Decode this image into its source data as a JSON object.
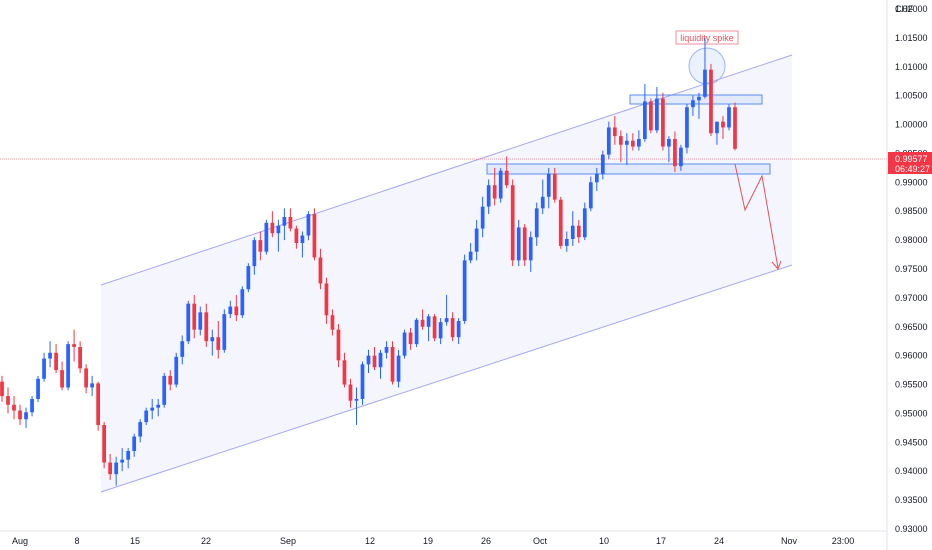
{
  "chart_data": {
    "type": "candlestick",
    "currency": "CHF",
    "ylim": [
      0.93,
      1.02
    ],
    "yticks": [
      "1.02000",
      "1.01500",
      "1.01000",
      "1.00500",
      "1.00000",
      "0.99500",
      "0.99000",
      "0.98500",
      "0.98000",
      "0.97500",
      "0.97000",
      "0.96500",
      "0.96000",
      "0.95500",
      "0.95000",
      "0.94500",
      "0.94000",
      "0.93500",
      "0.93000"
    ],
    "xticks": [
      "Aug",
      "8",
      "15",
      "22",
      "Sep",
      "12",
      "19",
      "26",
      "Oct",
      "10",
      "17",
      "24",
      "Nov",
      "23:00"
    ],
    "current_price": "0.99577",
    "countdown": "06:49:27",
    "annotation": "liquidity spike",
    "colors": {
      "up": "#2962ff",
      "down": "#f23645",
      "channel": "#7b7fe0",
      "zone": "#5b8def"
    },
    "ohlc": [
      [
        0.9555,
        0.9565,
        0.952,
        0.953
      ],
      [
        0.953,
        0.9545,
        0.95,
        0.9515
      ],
      [
        0.9515,
        0.953,
        0.949,
        0.9505
      ],
      [
        0.9505,
        0.9515,
        0.948,
        0.949
      ],
      [
        0.949,
        0.951,
        0.9475,
        0.9502
      ],
      [
        0.9502,
        0.953,
        0.9495,
        0.9525
      ],
      [
        0.9525,
        0.9565,
        0.952,
        0.956
      ],
      [
        0.956,
        0.9605,
        0.9555,
        0.9595
      ],
      [
        0.9595,
        0.9625,
        0.958,
        0.9605
      ],
      [
        0.9605,
        0.962,
        0.957,
        0.9575
      ],
      [
        0.9575,
        0.959,
        0.954,
        0.9545
      ],
      [
        0.9545,
        0.9625,
        0.954,
        0.962
      ],
      [
        0.962,
        0.9645,
        0.959,
        0.9615
      ],
      [
        0.9615,
        0.9625,
        0.957,
        0.9578
      ],
      [
        0.9578,
        0.9585,
        0.9535,
        0.9545
      ],
      [
        0.9545,
        0.9565,
        0.953,
        0.9552
      ],
      [
        0.9552,
        0.9555,
        0.947,
        0.948
      ],
      [
        0.948,
        0.9485,
        0.9405,
        0.9415
      ],
      [
        0.9415,
        0.943,
        0.9385,
        0.9395
      ],
      [
        0.9395,
        0.9425,
        0.9375,
        0.9415
      ],
      [
        0.9415,
        0.944,
        0.94,
        0.942
      ],
      [
        0.942,
        0.944,
        0.9405,
        0.9435
      ],
      [
        0.9435,
        0.9465,
        0.9425,
        0.946
      ],
      [
        0.946,
        0.949,
        0.945,
        0.9485
      ],
      [
        0.9485,
        0.951,
        0.948,
        0.9505
      ],
      [
        0.9505,
        0.9525,
        0.949,
        0.951
      ],
      [
        0.951,
        0.9525,
        0.9495,
        0.9515
      ],
      [
        0.9515,
        0.957,
        0.951,
        0.9565
      ],
      [
        0.9565,
        0.9575,
        0.954,
        0.955
      ],
      [
        0.955,
        0.9605,
        0.9545,
        0.9598
      ],
      [
        0.9598,
        0.9635,
        0.9585,
        0.9625
      ],
      [
        0.9625,
        0.9695,
        0.962,
        0.969
      ],
      [
        0.969,
        0.9705,
        0.963,
        0.9645
      ],
      [
        0.9645,
        0.9685,
        0.9635,
        0.9675
      ],
      [
        0.9675,
        0.969,
        0.9615,
        0.9625
      ],
      [
        0.9625,
        0.9645,
        0.96,
        0.9632
      ],
      [
        0.9632,
        0.966,
        0.9595,
        0.961
      ],
      [
        0.961,
        0.968,
        0.9605,
        0.9672
      ],
      [
        0.9672,
        0.9695,
        0.9665,
        0.9685
      ],
      [
        0.9685,
        0.9705,
        0.966,
        0.967
      ],
      [
        0.967,
        0.972,
        0.9665,
        0.9715
      ],
      [
        0.9715,
        0.976,
        0.971,
        0.9755
      ],
      [
        0.9755,
        0.9805,
        0.974,
        0.98
      ],
      [
        0.98,
        0.9815,
        0.9765,
        0.978
      ],
      [
        0.978,
        0.9835,
        0.9775,
        0.983
      ],
      [
        0.983,
        0.985,
        0.9805,
        0.9812
      ],
      [
        0.9812,
        0.9835,
        0.978,
        0.9825
      ],
      [
        0.9825,
        0.9855,
        0.98,
        0.984
      ],
      [
        0.984,
        0.9855,
        0.9815,
        0.982
      ],
      [
        0.982,
        0.9825,
        0.9785,
        0.9795
      ],
      [
        0.9795,
        0.9815,
        0.977,
        0.9808
      ],
      [
        0.9808,
        0.985,
        0.98,
        0.9845
      ],
      [
        0.9845,
        0.9855,
        0.9765,
        0.977
      ],
      [
        0.977,
        0.9785,
        0.9715,
        0.9725
      ],
      [
        0.9725,
        0.9735,
        0.9655,
        0.967
      ],
      [
        0.967,
        0.968,
        0.9635,
        0.9645
      ],
      [
        0.9645,
        0.9655,
        0.958,
        0.9592
      ],
      [
        0.9592,
        0.9605,
        0.9545,
        0.955
      ],
      [
        0.955,
        0.956,
        0.951,
        0.9522
      ],
      [
        0.9522,
        0.9545,
        0.948,
        0.9525
      ],
      [
        0.9525,
        0.959,
        0.9515,
        0.9585
      ],
      [
        0.9585,
        0.961,
        0.957,
        0.96
      ],
      [
        0.96,
        0.9615,
        0.9575,
        0.958
      ],
      [
        0.958,
        0.961,
        0.956,
        0.9605
      ],
      [
        0.9605,
        0.9625,
        0.9595,
        0.9615
      ],
      [
        0.9615,
        0.9625,
        0.955,
        0.9555
      ],
      [
        0.9555,
        0.961,
        0.9545,
        0.96
      ],
      [
        0.96,
        0.9645,
        0.9595,
        0.964
      ],
      [
        0.964,
        0.9648,
        0.961,
        0.962
      ],
      [
        0.962,
        0.9665,
        0.9615,
        0.9662
      ],
      [
        0.9662,
        0.968,
        0.9645,
        0.965
      ],
      [
        0.965,
        0.9672,
        0.9625,
        0.9668
      ],
      [
        0.9668,
        0.9672,
        0.9625,
        0.963
      ],
      [
        0.963,
        0.9665,
        0.962,
        0.9658
      ],
      [
        0.9658,
        0.9705,
        0.9652,
        0.9665
      ],
      [
        0.9665,
        0.9675,
        0.9625,
        0.9632
      ],
      [
        0.9632,
        0.9665,
        0.962,
        0.966
      ],
      [
        0.966,
        0.9775,
        0.9655,
        0.9765
      ],
      [
        0.9765,
        0.9795,
        0.976,
        0.978
      ],
      [
        0.978,
        0.9835,
        0.9765,
        0.982
      ],
      [
        0.982,
        0.9875,
        0.9805,
        0.9858
      ],
      [
        0.9858,
        0.9905,
        0.9845,
        0.9895
      ],
      [
        0.9895,
        0.9925,
        0.986,
        0.9872
      ],
      [
        0.9872,
        0.9925,
        0.9865,
        0.992
      ],
      [
        0.992,
        0.9945,
        0.989,
        0.9895
      ],
      [
        0.9895,
        0.9905,
        0.9755,
        0.9765
      ],
      [
        0.9765,
        0.9835,
        0.9755,
        0.9822
      ],
      [
        0.9822,
        0.9828,
        0.9755,
        0.9765
      ],
      [
        0.9765,
        0.9815,
        0.9745,
        0.9805
      ],
      [
        0.9805,
        0.9865,
        0.979,
        0.9855
      ],
      [
        0.9855,
        0.9905,
        0.9845,
        0.9875
      ],
      [
        0.9875,
        0.9925,
        0.9855,
        0.9915
      ],
      [
        0.9915,
        0.9925,
        0.9865,
        0.987
      ],
      [
        0.987,
        0.9875,
        0.9785,
        0.979
      ],
      [
        0.979,
        0.9815,
        0.978,
        0.9802
      ],
      [
        0.9802,
        0.985,
        0.979,
        0.9825
      ],
      [
        0.9825,
        0.9835,
        0.9795,
        0.9805
      ],
      [
        0.9805,
        0.9865,
        0.98,
        0.9855
      ],
      [
        0.9855,
        0.991,
        0.985,
        0.99
      ],
      [
        0.99,
        0.9925,
        0.9885,
        0.9915
      ],
      [
        0.9915,
        0.9955,
        0.9905,
        0.9948
      ],
      [
        0.9948,
        1.0005,
        0.994,
        0.9995
      ],
      [
        0.9995,
        1.0015,
        0.9965,
        0.998
      ],
      [
        0.998,
        0.999,
        0.9935,
        0.9965
      ],
      [
        0.9965,
        0.9985,
        0.993,
        0.9972
      ],
      [
        0.9972,
        0.9985,
        0.9955,
        0.9962
      ],
      [
        0.9962,
        0.999,
        0.9955,
        0.9975
      ],
      [
        0.9975,
        1.007,
        0.997,
        1.004
      ],
      [
        1.004,
        1.0045,
        0.9985,
        0.999
      ],
      [
        0.999,
        1.0065,
        0.9985,
        1.0045
      ],
      [
        1.0045,
        1.0055,
        0.9955,
        0.9962
      ],
      [
        0.9962,
        0.998,
        0.9935,
        0.9975
      ],
      [
        0.9975,
        0.9988,
        0.9918,
        0.9928
      ],
      [
        0.9928,
        0.9965,
        0.992,
        0.996
      ],
      [
        0.996,
        1.0035,
        0.995,
        1.003
      ],
      [
        1.003,
        1.005,
        1.0015,
        1.0042
      ],
      [
        1.0042,
        1.0055,
        1.001,
        1.0048
      ],
      [
        1.0048,
        1.015,
        1.0045,
        1.0095
      ],
      [
        1.0095,
        1.0105,
        0.998,
        0.9985
      ],
      [
        0.9985,
        1.0005,
        0.9965,
        1.0005
      ],
      [
        1.0005,
        1.0015,
        0.9975,
        0.9995
      ],
      [
        0.9995,
        1.0035,
        0.999,
        1.003
      ],
      [
        1.003,
        1.0038,
        0.9955,
        0.9958
      ]
    ]
  }
}
